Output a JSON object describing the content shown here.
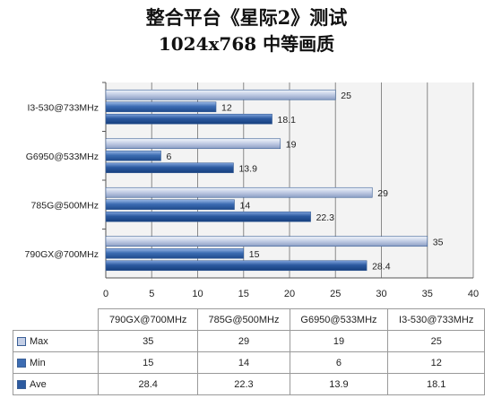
{
  "header": {
    "title": "整合平台《星际2》测试",
    "subtitle": "1024x768 中等画质"
  },
  "colors": {
    "max": "#c4cfe6",
    "min": "#3d6db3",
    "ave": "#2c5aa0",
    "grid": "#8a8a8a",
    "plot_bg": "#f3f3f3"
  },
  "chart_data": {
    "type": "bar",
    "orientation": "horizontal",
    "title": "整合平台《星际2》测试",
    "subtitle": "1024x768 中等画质",
    "categories": [
      "I3-530@733MHz",
      "G6950@533MHz",
      "785G@500MHz",
      "790GX@700MHz"
    ],
    "series": [
      {
        "name": "Max",
        "values": [
          25,
          19,
          29,
          35
        ]
      },
      {
        "name": "Min",
        "values": [
          12,
          6,
          14,
          15
        ]
      },
      {
        "name": "Ave",
        "values": [
          18.1,
          13.9,
          22.3,
          28.4
        ]
      }
    ],
    "xlim": [
      0,
      40
    ],
    "xticks": [
      0,
      5,
      10,
      15,
      20,
      25,
      30,
      35,
      40
    ],
    "grid": true,
    "legend": "data table below chart"
  },
  "table": {
    "columns": [
      "790GX@700MHz",
      "785G@500MHz",
      "G6950@533MHz",
      "I3-530@733MHz"
    ],
    "rows": [
      {
        "label": "Max",
        "values": [
          "35",
          "29",
          "19",
          "25"
        ]
      },
      {
        "label": "Min",
        "values": [
          "15",
          "14",
          "6",
          "12"
        ]
      },
      {
        "label": "Ave",
        "values": [
          "28.4",
          "22.3",
          "13.9",
          "18.1"
        ]
      }
    ]
  }
}
